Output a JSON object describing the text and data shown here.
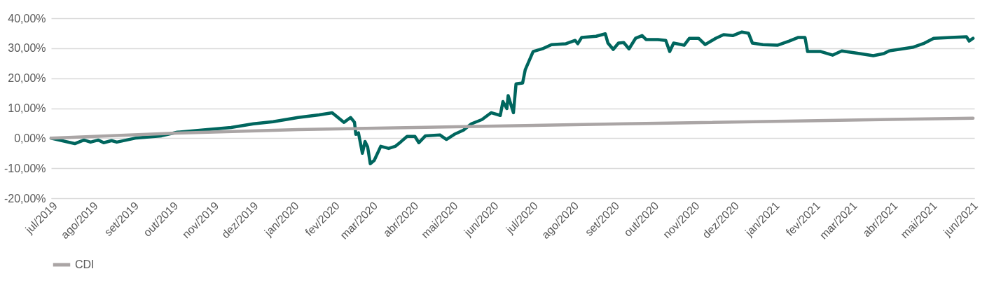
{
  "chart_data": {
    "type": "line",
    "xlim": [
      "2019-07-01",
      "2021-06-03"
    ],
    "xticks": [
      {
        "value": "2019-07-01",
        "label": "jul/2019"
      },
      {
        "value": "2019-08-01",
        "label": "ago/2019"
      },
      {
        "value": "2019-09-01",
        "label": "set/2019"
      },
      {
        "value": "2019-10-01",
        "label": "out/2019"
      },
      {
        "value": "2019-11-01",
        "label": "nov/2019"
      },
      {
        "value": "2019-12-01",
        "label": "dez/2019"
      },
      {
        "value": "2020-01-01",
        "label": "jan/2020"
      },
      {
        "value": "2020-02-01",
        "label": "fev/2020"
      },
      {
        "value": "2020-03-01",
        "label": "mar/2020"
      },
      {
        "value": "2020-04-01",
        "label": "abr/2020"
      },
      {
        "value": "2020-05-01",
        "label": "mai/2020"
      },
      {
        "value": "2020-06-01",
        "label": "jun/2020"
      },
      {
        "value": "2020-07-01",
        "label": "jul/2020"
      },
      {
        "value": "2020-08-01",
        "label": "ago/2020"
      },
      {
        "value": "2020-09-01",
        "label": "set/2020"
      },
      {
        "value": "2020-10-01",
        "label": "out/2020"
      },
      {
        "value": "2020-11-01",
        "label": "nov/2020"
      },
      {
        "value": "2020-12-01",
        "label": "dez/2020"
      },
      {
        "value": "2021-01-01",
        "label": "jan/2021"
      },
      {
        "value": "2021-02-01",
        "label": "fev/2021"
      },
      {
        "value": "2021-03-01",
        "label": "mar/2021"
      },
      {
        "value": "2021-04-01",
        "label": "abr/2021"
      },
      {
        "value": "2021-05-01",
        "label": "mai/2021"
      },
      {
        "value": "2021-06-01",
        "label": "jun/2021"
      }
    ],
    "ylim": [
      -20,
      40
    ],
    "yticks": [
      {
        "value": -20,
        "label": "-20,00%"
      },
      {
        "value": -10,
        "label": "-10,00%"
      },
      {
        "value": 0,
        "label": "0,00%"
      },
      {
        "value": 10,
        "label": "10,00%"
      },
      {
        "value": 20,
        "label": "20,00%"
      },
      {
        "value": 30,
        "label": "30,00%"
      },
      {
        "value": 40,
        "label": "40,00%"
      }
    ],
    "grid": "y",
    "legend": "bottom",
    "marker": "none",
    "line_style": "solid",
    "series": [
      {
        "color": "#00665e",
        "x": [
          "2019-07-01",
          "2019-07-19",
          "2019-07-26",
          "2019-07-31",
          "2019-08-06",
          "2019-08-10",
          "2019-08-16",
          "2019-08-20",
          "2019-09-04",
          "2019-09-23",
          "2019-10-05",
          "2019-10-28",
          "2019-11-15",
          "2019-12-02",
          "2019-12-17",
          "2020-01-05",
          "2020-01-21",
          "2020-01-31",
          "2020-02-09",
          "2020-02-14",
          "2020-02-17",
          "2020-02-18",
          "2020-02-20",
          "2020-02-23",
          "2020-02-25",
          "2020-02-27",
          "2020-02-29",
          "2020-03-03",
          "2020-03-08",
          "2020-03-14",
          "2020-03-19",
          "2020-03-23",
          "2020-03-28",
          "2020-04-03",
          "2020-04-06",
          "2020-04-11",
          "2020-04-22",
          "2020-04-27",
          "2020-05-03",
          "2020-05-10",
          "2020-05-16",
          "2020-05-24",
          "2020-05-31",
          "2020-06-07",
          "2020-06-09",
          "2020-06-12",
          "2020-06-13",
          "2020-06-17",
          "2020-06-19",
          "2020-06-24",
          "2020-06-26",
          "2020-07-02",
          "2020-07-09",
          "2020-07-16",
          "2020-07-27",
          "2020-08-03",
          "2020-08-05",
          "2020-08-08",
          "2020-08-19",
          "2020-08-26",
          "2020-08-28",
          "2020-09-01",
          "2020-09-05",
          "2020-09-09",
          "2020-09-13",
          "2020-09-18",
          "2020-09-23",
          "2020-09-26",
          "2020-10-05",
          "2020-10-11",
          "2020-10-14",
          "2020-10-17",
          "2020-10-25",
          "2020-10-29",
          "2020-11-05",
          "2020-11-10",
          "2020-11-18",
          "2020-11-24",
          "2020-12-01",
          "2020-12-08",
          "2020-12-13",
          "2020-12-16",
          "2020-12-24",
          "2021-01-04",
          "2021-01-13",
          "2021-01-20",
          "2021-01-25",
          "2021-01-27",
          "2021-02-06",
          "2021-02-15",
          "2021-02-22",
          "2021-03-05",
          "2021-03-18",
          "2021-03-26",
          "2021-03-30",
          "2021-04-17",
          "2021-04-26",
          "2021-05-03",
          "2021-05-16",
          "2021-05-28",
          "2021-05-30",
          "2021-06-02"
        ],
        "values": [
          0,
          -1.8,
          -0.6,
          -1.3,
          -0.6,
          -1.5,
          -0.8,
          -1.3,
          0.1,
          0.8,
          2.0,
          2.9,
          3.6,
          4.8,
          5.5,
          6.9,
          7.8,
          8.5,
          5.3,
          6.9,
          5.3,
          1.3,
          1.8,
          -5.0,
          -1.1,
          -2.9,
          -8.5,
          -7.4,
          -2.7,
          -3.4,
          -2.7,
          -1.3,
          0.6,
          0.6,
          -1.5,
          0.8,
          1.1,
          -0.4,
          1.3,
          2.7,
          4.8,
          6.2,
          8.5,
          7.6,
          12.2,
          9.9,
          14.2,
          8.5,
          18.1,
          18.4,
          22.8,
          28.9,
          29.8,
          31.2,
          31.5,
          32.6,
          31.5,
          33.6,
          34.0,
          34.8,
          31.7,
          29.6,
          31.7,
          31.9,
          29.8,
          33.3,
          34.2,
          32.9,
          32.9,
          32.6,
          28.9,
          31.7,
          31.0,
          33.3,
          33.3,
          31.2,
          33.3,
          34.5,
          34.2,
          35.4,
          35.0,
          31.7,
          31.2,
          31.0,
          32.4,
          33.6,
          33.6,
          28.9,
          28.9,
          27.7,
          29.1,
          28.4,
          27.5,
          28.2,
          29.1,
          30.3,
          31.7,
          33.3,
          33.6,
          33.8,
          32.4,
          33.3
        ]
      },
      {
        "name": "CDI",
        "color": "#aaa5a5",
        "x": [
          "2019-07-01",
          "2019-10-05",
          "2020-01-05",
          "2020-09-09",
          "2021-06-02"
        ],
        "values": [
          0,
          1.7,
          2.9,
          4.8,
          6.7
        ]
      }
    ]
  }
}
